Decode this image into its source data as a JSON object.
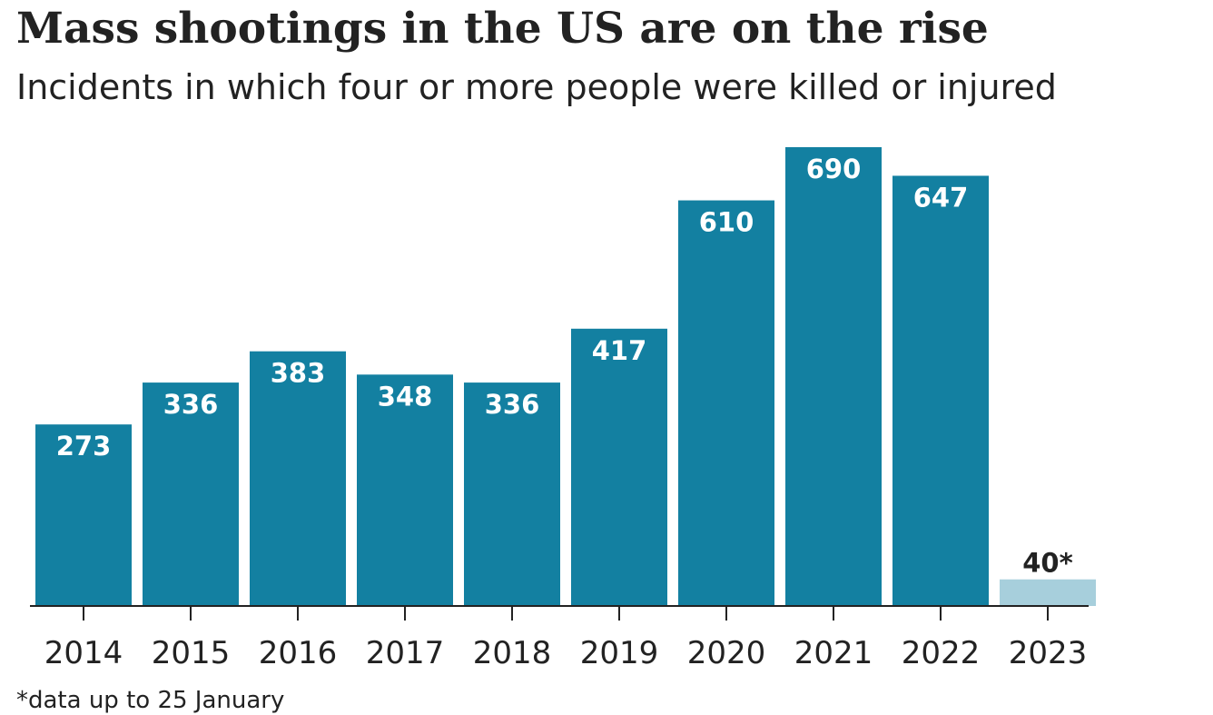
{
  "title": "Mass shootings in the US are on the rise",
  "subtitle": "Incidents in which four or more people were killed or injured",
  "footnote": "*data up to 25 January",
  "colors": {
    "bar": "#1380a1",
    "partial_bar": "#a7cfdc",
    "label_inside": "#ffffff",
    "label_outside": "#222222",
    "axis": "#222222"
  },
  "chart_data": {
    "type": "bar",
    "categories": [
      "2014",
      "2015",
      "2016",
      "2017",
      "2018",
      "2019",
      "2020",
      "2021",
      "2022",
      "2023"
    ],
    "values": [
      273,
      336,
      383,
      348,
      336,
      417,
      610,
      690,
      647,
      40
    ],
    "labels": [
      "273",
      "336",
      "383",
      "348",
      "336",
      "417",
      "610",
      "690",
      "647",
      "40*"
    ],
    "partial": [
      false,
      false,
      false,
      false,
      false,
      false,
      false,
      false,
      false,
      true
    ],
    "title": "Mass shootings in the US are on the rise",
    "subtitle": "Incidents in which four or more people were killed or injured",
    "xlabel": "",
    "ylabel": "",
    "ylim": [
      0,
      690
    ],
    "grid": false,
    "legend": "none"
  }
}
